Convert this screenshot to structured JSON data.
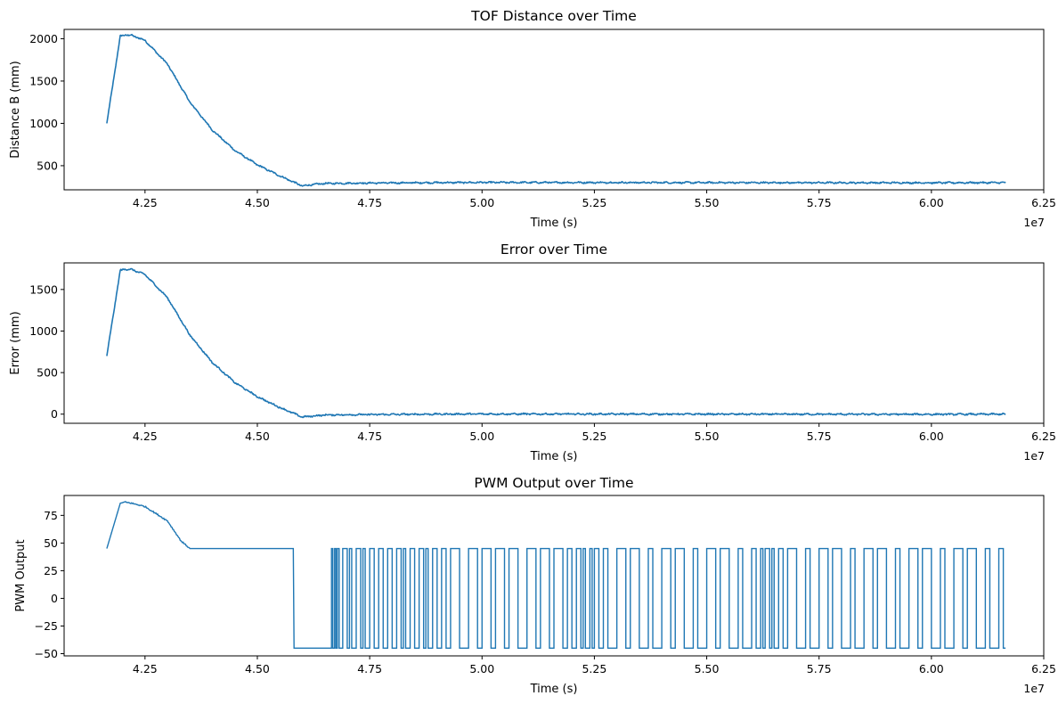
{
  "chart_data": [
    {
      "type": "line",
      "title": "TOF Distance over Time",
      "xlabel": "Time (s)",
      "ylabel": "Distance B (mm)",
      "x_offset_label": "1e7",
      "xlim": [
        4.07,
        6.25
      ],
      "ylim": [
        215,
        2110
      ],
      "xticks": [
        4.25,
        4.5,
        4.75,
        5.0,
        5.25,
        5.5,
        5.75,
        6.0,
        6.25
      ],
      "xtick_labels": [
        "4.25",
        "4.50",
        "4.75",
        "5.00",
        "5.25",
        "5.50",
        "5.75",
        "6.00",
        "6.25"
      ],
      "yticks": [
        500,
        1000,
        1500,
        2000
      ],
      "ytick_labels": [
        "500",
        "1000",
        "1500",
        "2000"
      ],
      "line_color": "#1f77b4",
      "series": [
        {
          "name": "Distance B",
          "x": [
            4.165,
            4.195,
            4.205,
            4.22,
            4.25,
            4.3,
            4.35,
            4.4,
            4.45,
            4.5,
            4.55,
            4.6,
            4.62,
            4.65,
            4.75,
            4.9,
            5.0,
            5.5,
            6.0,
            6.165
          ],
          "y": [
            1000,
            2030,
            2045,
            2040,
            1980,
            1700,
            1250,
            920,
            680,
            510,
            380,
            260,
            275,
            290,
            295,
            300,
            302,
            300,
            298,
            300
          ]
        }
      ]
    },
    {
      "type": "line",
      "title": "Error over Time",
      "xlabel": "Time (s)",
      "ylabel": "Error (mm)",
      "x_offset_label": "1e7",
      "xlim": [
        4.07,
        6.25
      ],
      "ylim": [
        -110,
        1820
      ],
      "xticks": [
        4.25,
        4.5,
        4.75,
        5.0,
        5.25,
        5.5,
        5.75,
        6.0,
        6.25
      ],
      "xtick_labels": [
        "4.25",
        "4.50",
        "4.75",
        "5.00",
        "5.25",
        "5.50",
        "5.75",
        "6.00",
        "6.25"
      ],
      "yticks": [
        0,
        500,
        1000,
        1500
      ],
      "ytick_labels": [
        "0",
        "500",
        "1000",
        "1500"
      ],
      "line_color": "#1f77b4",
      "series": [
        {
          "name": "Error",
          "x": [
            4.165,
            4.195,
            4.205,
            4.22,
            4.25,
            4.3,
            4.35,
            4.4,
            4.45,
            4.5,
            4.55,
            4.6,
            4.62,
            4.65,
            4.75,
            4.9,
            5.0,
            5.5,
            6.0,
            6.165
          ],
          "y": [
            700,
            1730,
            1745,
            1740,
            1680,
            1400,
            950,
            620,
            380,
            210,
            80,
            -35,
            -25,
            -10,
            -5,
            0,
            2,
            0,
            -2,
            0
          ]
        }
      ]
    },
    {
      "type": "line",
      "title": "PWM Output over Time",
      "xlabel": "Time (s)",
      "ylabel": "PWM Output",
      "x_offset_label": "1e7",
      "xlim": [
        4.07,
        6.25
      ],
      "ylim": [
        -52,
        93
      ],
      "xticks": [
        4.25,
        4.5,
        4.75,
        5.0,
        5.25,
        5.5,
        5.75,
        6.0,
        6.25
      ],
      "xtick_labels": [
        "4.25",
        "4.50",
        "4.75",
        "5.00",
        "5.25",
        "5.50",
        "5.75",
        "6.00",
        "6.25"
      ],
      "yticks": [
        -50,
        -25,
        0,
        25,
        50,
        75
      ],
      "ytick_labels": [
        "−50",
        "−25",
        "0",
        "25",
        "50",
        "75"
      ],
      "line_color": "#1f77b4",
      "series": [
        {
          "name": "PWM Output",
          "x": [
            4.165,
            4.195,
            4.205,
            4.22,
            4.25,
            4.3,
            4.33,
            4.35,
            4.58,
            4.58,
            4.665
          ],
          "y": [
            45,
            86,
            87,
            86,
            83,
            70,
            52,
            45,
            45,
            -45,
            -45
          ]
        }
      ],
      "switching": {
        "high": 45,
        "low": -45,
        "x_start": 4.665,
        "x_end": 6.165,
        "toggle_x": [
          4.665,
          4.668,
          4.672,
          4.675,
          4.678,
          4.682,
          4.69,
          4.7,
          4.705,
          4.71,
          4.72,
          4.73,
          4.735,
          4.74,
          4.75,
          4.76,
          4.77,
          4.78,
          4.79,
          4.8,
          4.81,
          4.82,
          4.825,
          4.83,
          4.84,
          4.85,
          4.86,
          4.87,
          4.875,
          4.88,
          4.89,
          4.9,
          4.91,
          4.92,
          4.93,
          4.95,
          4.97,
          4.99,
          5.0,
          5.02,
          5.03,
          5.05,
          5.06,
          5.08,
          5.1,
          5.12,
          5.13,
          5.15,
          5.16,
          5.18,
          5.19,
          5.2,
          5.21,
          5.22,
          5.225,
          5.23,
          5.24,
          5.245,
          5.25,
          5.26,
          5.27,
          5.28,
          5.3,
          5.32,
          5.33,
          5.35,
          5.37,
          5.38,
          5.4,
          5.42,
          5.43,
          5.45,
          5.47,
          5.48,
          5.5,
          5.52,
          5.53,
          5.55,
          5.57,
          5.58,
          5.6,
          5.61,
          5.62,
          5.625,
          5.63,
          5.64,
          5.645,
          5.65,
          5.66,
          5.67,
          5.68,
          5.7,
          5.72,
          5.73,
          5.75,
          5.77,
          5.78,
          5.8,
          5.82,
          5.83,
          5.85,
          5.87,
          5.88,
          5.9,
          5.92,
          5.93,
          5.95,
          5.97,
          5.98,
          6.0,
          6.02,
          6.03,
          6.05,
          6.07,
          6.08,
          6.1,
          6.12,
          6.13,
          6.15,
          6.16
        ]
      }
    }
  ]
}
